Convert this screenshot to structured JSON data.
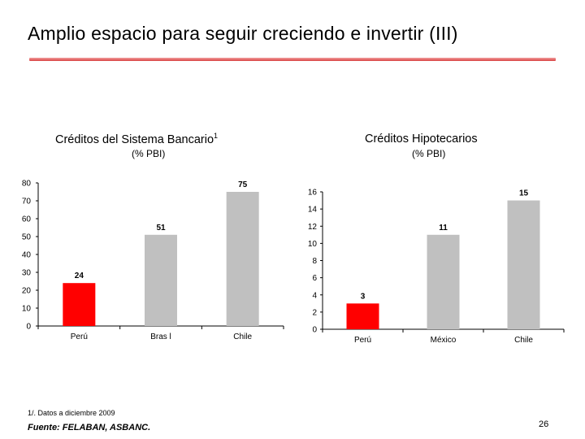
{
  "slide": {
    "title": "Amplio espacio para seguir creciendo e invertir (III)",
    "footnote": "1/. Datos a diciembre 2009",
    "source": "Fuente: FELABAN, ASBANC.",
    "page_number": "26"
  },
  "chart_data": [
    {
      "type": "bar",
      "title": "Créditos del Sistema Bancario",
      "title_superscript": "1",
      "subtitle": "(% PBI)",
      "categories": [
        "Perú",
        "Bras l",
        "Chile"
      ],
      "values": [
        24,
        51,
        75
      ],
      "colors": [
        "#ff0000",
        "#c0c0c0",
        "#c0c0c0"
      ],
      "ylim": [
        0,
        80
      ],
      "yticks": [
        0,
        10,
        20,
        30,
        40,
        50,
        60,
        70,
        80
      ],
      "xlabel": "",
      "ylabel": "",
      "grid": false
    },
    {
      "type": "bar",
      "title": "Créditos Hipotecarios",
      "subtitle": "(% PBI)",
      "categories": [
        "Perú",
        "México",
        "Chile"
      ],
      "values": [
        3,
        11,
        15
      ],
      "colors": [
        "#ff0000",
        "#c0c0c0",
        "#c0c0c0"
      ],
      "ylim": [
        0,
        16
      ],
      "yticks": [
        0,
        2,
        4,
        6,
        8,
        10,
        12,
        14,
        16
      ],
      "xlabel": "",
      "ylabel": "",
      "grid": false
    }
  ]
}
